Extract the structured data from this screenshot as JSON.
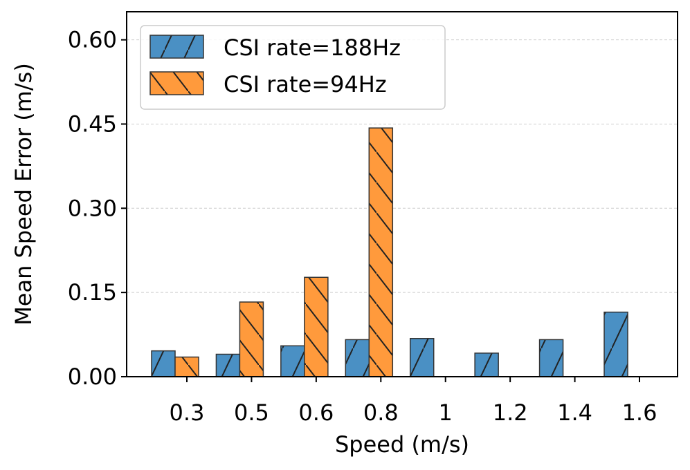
{
  "chart_data": {
    "type": "bar",
    "title": "",
    "xlabel": "Speed (m/s)",
    "ylabel": "Mean Speed Error (m/s)",
    "categories": [
      "0.3",
      "0.5",
      "0.6",
      "0.8",
      "1",
      "1.2",
      "1.4",
      "1.6"
    ],
    "ylim": [
      0,
      0.65
    ],
    "yticks": [
      0.0,
      0.15,
      0.3,
      0.45,
      0.6
    ],
    "ytick_labels": [
      "0.00",
      "0.15",
      "0.30",
      "0.45",
      "0.60"
    ],
    "grid": true,
    "legend_position": "top-left",
    "series": [
      {
        "name": "CSI rate=188Hz",
        "color": "#4a90c4",
        "hatch": "forward-slash",
        "values": [
          0.046,
          0.04,
          0.055,
          0.066,
          0.068,
          0.042,
          0.066,
          0.115
        ]
      },
      {
        "name": "CSI rate=94Hz",
        "color": "#ff9a3c",
        "hatch": "back-slash",
        "values": [
          0.035,
          0.133,
          0.177,
          0.443,
          null,
          null,
          null,
          null
        ]
      }
    ]
  }
}
